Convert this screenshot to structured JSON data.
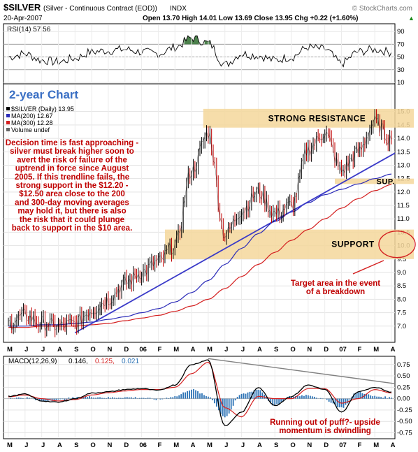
{
  "header": {
    "symbol": "$SILVER",
    "name": "(Silver - Continuous Contract (EOD))",
    "exchange": "INDX",
    "watermark": "© StockCharts.com",
    "date": "20-Apr-2007",
    "quote": "Open 13.70  High 14.01  Low 13.69  Close 13.95  Chg +0.22 (+1.60%)",
    "quote_arrow": "▲"
  },
  "colors": {
    "price": "#000000",
    "ma200": "#2b2bb8",
    "ma300": "#d42020",
    "trendline": "#3a3ac8",
    "zone": "#f5d79b",
    "annotation": "#c00000",
    "macd_hist": "#2d73b5",
    "macd_signal": "#d42020",
    "rsi_fill": "#2d6b2d",
    "macd_trend": "#808080",
    "ellipse": "#d42020"
  },
  "rsi_panel": {
    "label": "RSI(14) 57.56",
    "ticks": [
      "90",
      "70",
      "50",
      "30",
      "10"
    ],
    "overbought": 70,
    "oversold": 30
  },
  "price_panel": {
    "chart_title": "2-year Chart",
    "legend": [
      {
        "text": "$SILVER (Daily) 13.95",
        "color": "#000000"
      },
      {
        "text": "MA(200) 12.67",
        "color": "#2b2bb8"
      },
      {
        "text": "MA(300) 12.28",
        "color": "#d42020"
      },
      {
        "text": "Volume undef",
        "color": "#666666"
      }
    ],
    "ticks": [
      "15.0",
      "14.5",
      "14.0",
      "13.5",
      "13.0",
      "12.5",
      "12.0",
      "11.5",
      "11.0",
      "10.5",
      "10.0",
      "9.5",
      "9.0",
      "8.5",
      "8.0",
      "7.5",
      "7.0"
    ],
    "resistance_label": "STRONG RESISTANCE",
    "support_label": "SUPPORT",
    "sup_label": "SUP.",
    "commentary": [
      "Decision time is fast approaching -",
      "silver must break higher soon to",
      "avert the risk of failure of the",
      "uptrend in force since August",
      "2005. If this trendline fails, the",
      "strong support in the $12.20 -",
      "$12.50 area close to the 200",
      "and 300-day moving averages",
      "may hold it, but there is also",
      "the risk that it could plunge",
      "back to support in the $10 area."
    ],
    "target_note": [
      "Target area in the event",
      "of a breakdown"
    ]
  },
  "months": [
    "M",
    "J",
    "J",
    "A",
    "S",
    "O",
    "N",
    "D",
    "06",
    "F",
    "M",
    "A",
    "M",
    "J",
    "J",
    "A",
    "S",
    "O",
    "N",
    "D",
    "07",
    "F",
    "M",
    "A"
  ],
  "macd_panel": {
    "label_prefix": "MACD(12,26,9)",
    "macd_value": "0.146,",
    "signal_value": "0.125,",
    "hist_value": "0.021",
    "ticks": [
      "0.75",
      "0.50",
      "0.25",
      "0.00",
      "-0.25",
      "-0.50",
      "-0.75"
    ],
    "note": [
      "Running out of puff?- upside",
      "momentum is dwindling"
    ]
  },
  "chart_data": {
    "type": "line",
    "title": "$SILVER (Daily)",
    "x": [
      "2005-05",
      "2005-06",
      "2005-07",
      "2005-08",
      "2005-09",
      "2005-10",
      "2005-11",
      "2005-12",
      "2006-01",
      "2006-02",
      "2006-03",
      "2006-04",
      "2006-05",
      "2006-06",
      "2006-07",
      "2006-08",
      "2006-09",
      "2006-10",
      "2006-11",
      "2006-12",
      "2007-01",
      "2007-02",
      "2007-03",
      "2007-04"
    ],
    "series": [
      {
        "name": "$SILVER",
        "values": [
          7.1,
          7.4,
          7.1,
          7.0,
          7.1,
          7.6,
          8.0,
          8.6,
          9.0,
          9.4,
          10.0,
          12.8,
          14.2,
          10.4,
          11.3,
          12.0,
          11.2,
          11.5,
          13.6,
          14.2,
          12.8,
          13.5,
          14.6,
          13.95
        ]
      },
      {
        "name": "MA(200)",
        "values": [
          7.0,
          7.0,
          7.05,
          7.05,
          7.1,
          7.15,
          7.25,
          7.35,
          7.5,
          7.65,
          7.9,
          8.25,
          8.7,
          9.3,
          9.9,
          10.45,
          10.9,
          11.25,
          11.6,
          11.9,
          12.1,
          12.3,
          12.5,
          12.67
        ]
      },
      {
        "name": "MA(300)",
        "values": [
          6.95,
          6.95,
          7.0,
          7.0,
          7.0,
          7.05,
          7.1,
          7.2,
          7.3,
          7.4,
          7.55,
          7.75,
          8.0,
          8.4,
          8.85,
          9.3,
          9.75,
          10.2,
          10.6,
          11.0,
          11.4,
          11.75,
          12.05,
          12.28
        ]
      }
    ],
    "rsi": {
      "name": "RSI(14)",
      "values": [
        50,
        55,
        45,
        42,
        48,
        58,
        60,
        62,
        58,
        55,
        65,
        80,
        72,
        38,
        55,
        52,
        45,
        50,
        65,
        62,
        40,
        58,
        62,
        57.56
      ]
    },
    "macd": {
      "macd": [
        0.05,
        0.1,
        -0.05,
        -0.08,
        0.0,
        0.12,
        0.15,
        0.2,
        0.22,
        0.18,
        0.3,
        0.75,
        0.85,
        -0.6,
        -0.3,
        0.25,
        -0.15,
        0.05,
        0.3,
        0.2,
        -0.3,
        0.15,
        0.25,
        0.146
      ],
      "signal": [
        0.04,
        0.08,
        0.0,
        -0.05,
        -0.02,
        0.08,
        0.13,
        0.17,
        0.2,
        0.2,
        0.25,
        0.55,
        0.8,
        -0.2,
        -0.4,
        0.05,
        0.0,
        0.0,
        0.22,
        0.22,
        -0.1,
        0.0,
        0.2,
        0.125
      ],
      "histogram": [
        0.01,
        0.02,
        -0.05,
        -0.03,
        0.02,
        0.04,
        0.02,
        0.03,
        0.02,
        -0.02,
        0.05,
        0.2,
        0.05,
        -0.4,
        0.1,
        0.2,
        -0.15,
        0.05,
        0.08,
        -0.02,
        -0.2,
        0.15,
        0.05,
        0.021
      ]
    },
    "resistance_zone": [
      14.4,
      15.1
    ],
    "support_zone": [
      9.5,
      10.6
    ],
    "sup_zone": [
      12.3,
      12.5
    ],
    "rsi_ylim": [
      10,
      100
    ],
    "price_ylim": [
      6.5,
      15.2
    ],
    "macd_ylim": [
      -0.85,
      0.9
    ],
    "grid": true
  }
}
